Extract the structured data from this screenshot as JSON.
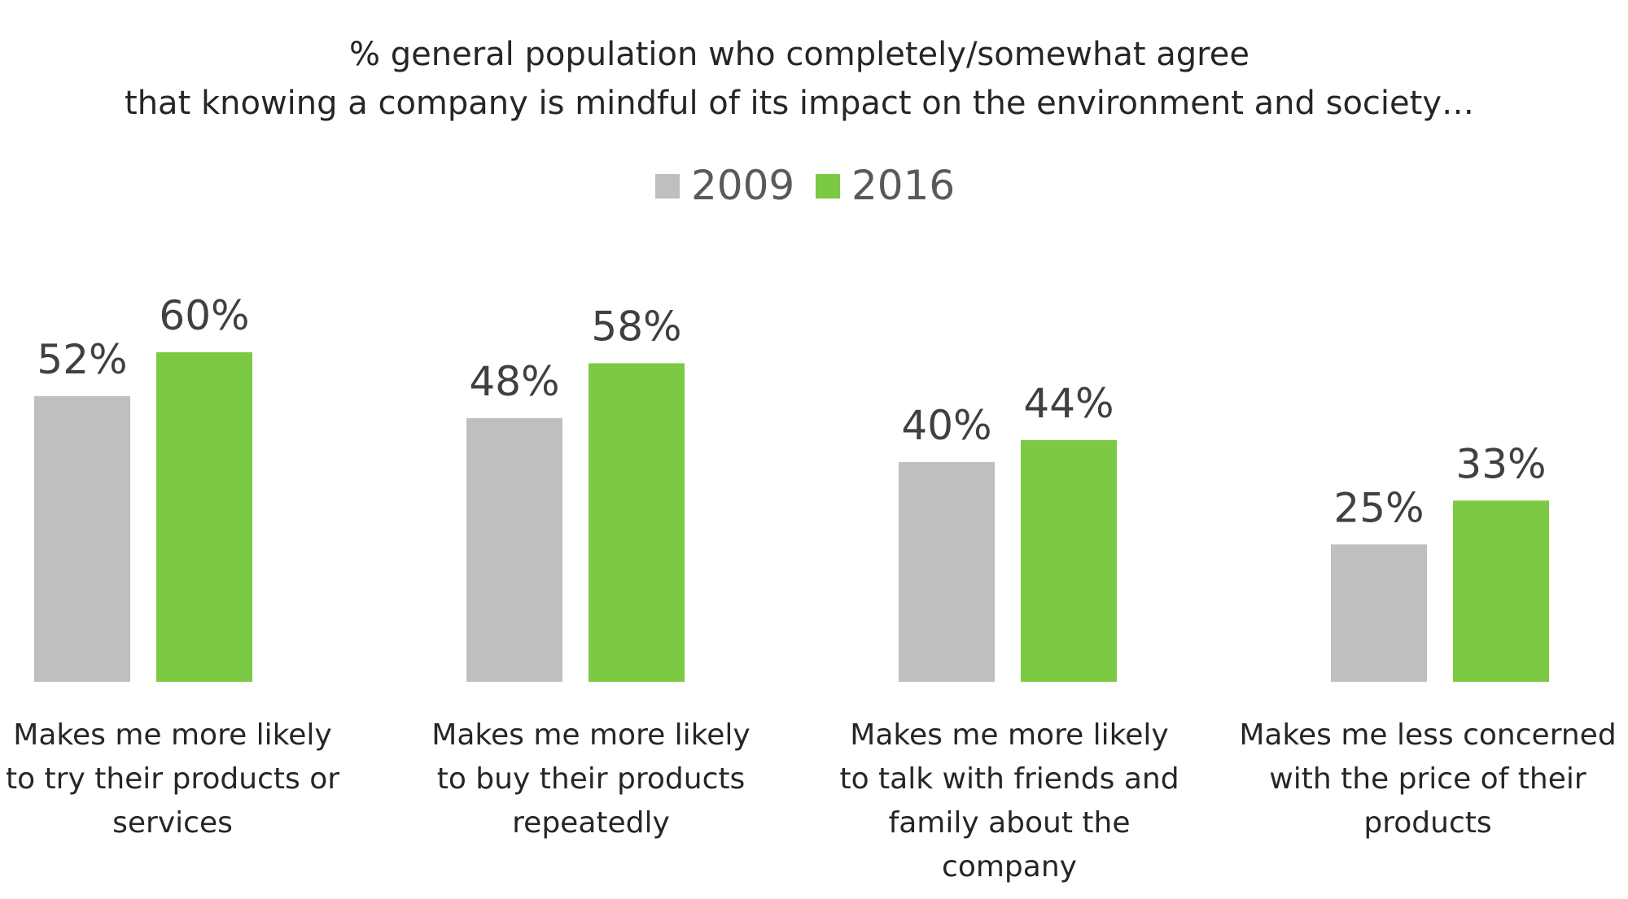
{
  "chart_data": {
    "type": "bar",
    "title": "% general population who completely/somewhat agree",
    "subtitle": "that knowing a company is mindful of its impact on the environment and society…",
    "legend_position": "top-center",
    "grid": false,
    "ylim": [
      0,
      70
    ],
    "categories": [
      [
        "Makes me more likely",
        "to try their products or",
        "services"
      ],
      [
        "Makes me more likely",
        "to buy their products",
        "repeatedly"
      ],
      [
        "Makes me more likely",
        "to talk with friends and",
        "family about the",
        "company"
      ],
      [
        "Makes me less concerned",
        "with the price of their",
        "products"
      ]
    ],
    "series": [
      {
        "name": "2009",
        "color": "#bfbfbf",
        "values": [
          52,
          48,
          40,
          25
        ],
        "labels": [
          "52%",
          "48%",
          "40%",
          "25%"
        ]
      },
      {
        "name": "2016",
        "color": "#7cc943",
        "values": [
          60,
          58,
          44,
          33
        ],
        "labels": [
          "60%",
          "58%",
          "44%",
          "33%"
        ]
      }
    ]
  }
}
